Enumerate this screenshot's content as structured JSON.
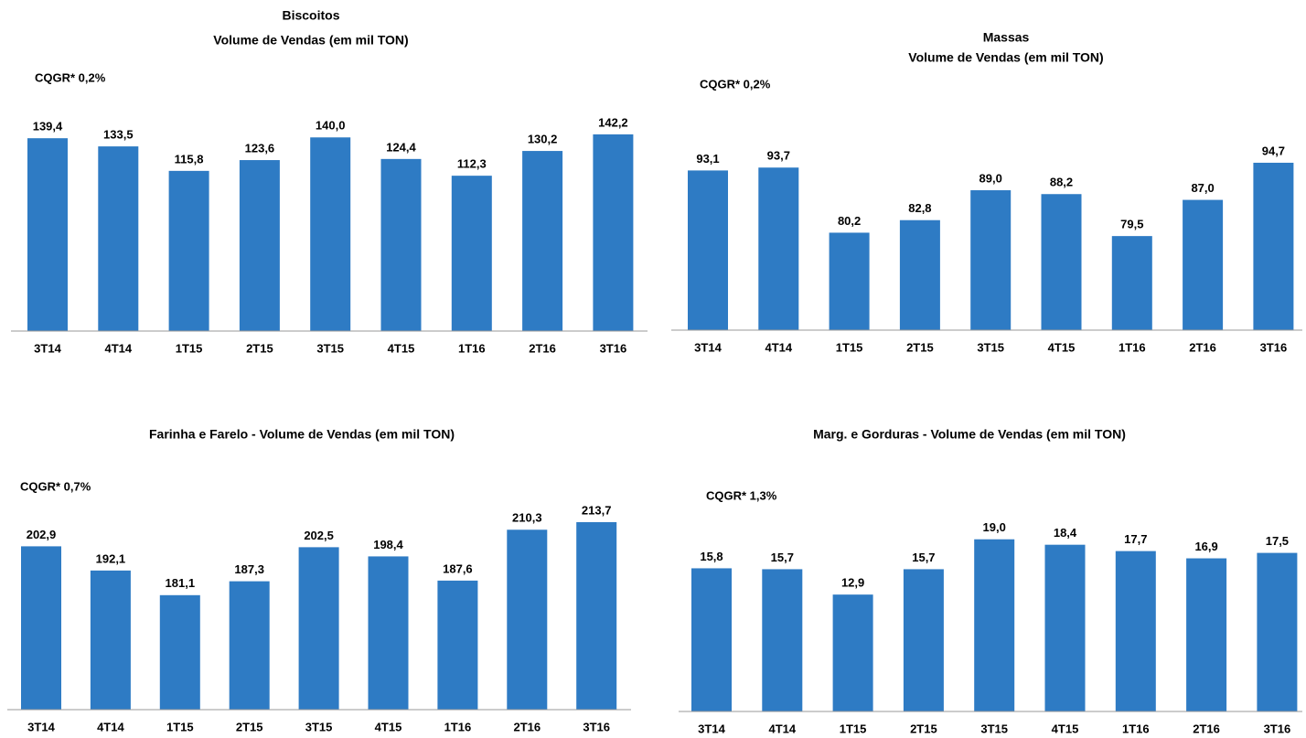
{
  "chart_data": [
    {
      "type": "bar",
      "title": "Biscoitos",
      "subtitle": "Volume de Vendas (em mil TON)",
      "annotation": "CQGR* 0,2%",
      "categories": [
        "3T14",
        "4T14",
        "1T15",
        "2T15",
        "3T15",
        "4T15",
        "1T16",
        "2T16",
        "3T16"
      ],
      "values": [
        139.4,
        133.5,
        115.8,
        123.6,
        140.0,
        124.4,
        112.3,
        130.2,
        142.2
      ],
      "value_labels": [
        "139,4",
        "133,5",
        "115,8",
        "123,6",
        "140,0",
        "124,4",
        "112,3",
        "130,2",
        "142,2"
      ],
      "color": "#2e7bc4",
      "ylim": [
        0,
        160
      ]
    },
    {
      "type": "bar",
      "title": "Massas",
      "subtitle": "Volume de Vendas (em mil TON)",
      "annotation": "CQGR* 0,2%",
      "categories": [
        "3T14",
        "4T14",
        "1T15",
        "2T15",
        "3T15",
        "4T15",
        "1T16",
        "2T16",
        "3T16"
      ],
      "values": [
        93.1,
        93.7,
        80.2,
        82.8,
        89.0,
        88.2,
        79.5,
        87.0,
        94.7
      ],
      "value_labels": [
        "93,1",
        "93,7",
        "80,2",
        "82,8",
        "89,0",
        "88,2",
        "79,5",
        "87,0",
        "94,7"
      ],
      "color": "#2e7bc4",
      "ylim": [
        60,
        100
      ]
    },
    {
      "type": "bar",
      "title": "Farinha e Farelo - Volume de Vendas (em mil TON)",
      "annotation": "CQGR* 0,7%",
      "categories": [
        "3T14",
        "4T14",
        "1T15",
        "2T15",
        "3T15",
        "4T15",
        "1T16",
        "2T16",
        "3T16"
      ],
      "values": [
        202.9,
        192.1,
        181.1,
        187.3,
        202.5,
        198.4,
        187.6,
        210.3,
        213.7
      ],
      "value_labels": [
        "202,9",
        "192,1",
        "181,1",
        "187,3",
        "202,5",
        "198,4",
        "187,6",
        "210,3",
        "213,7"
      ],
      "color": "#2e7bc4",
      "ylim": [
        130,
        230
      ]
    },
    {
      "type": "bar",
      "title": "Marg. e Gorduras - Volume de Vendas (em mil TON)",
      "annotation": "CQGR* 1,3%",
      "categories": [
        "3T14",
        "4T14",
        "1T15",
        "2T15",
        "3T15",
        "4T15",
        "1T16",
        "2T16",
        "3T16"
      ],
      "values": [
        15.8,
        15.7,
        12.9,
        15.7,
        19.0,
        18.4,
        17.7,
        16.9,
        17.5
      ],
      "value_labels": [
        "15,8",
        "15,7",
        "12,9",
        "15,7",
        "19,0",
        "18,4",
        "17,7",
        "16,9",
        "17,5"
      ],
      "color": "#2e7bc4",
      "ylim": [
        0,
        22
      ]
    }
  ]
}
